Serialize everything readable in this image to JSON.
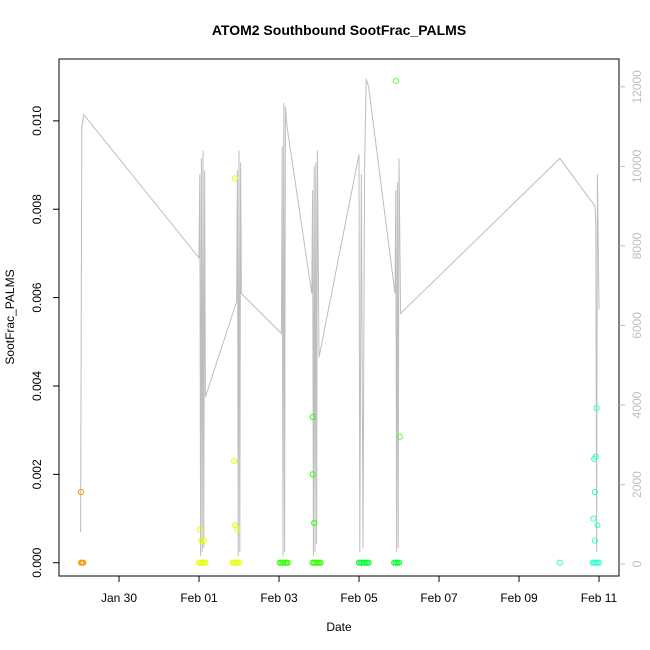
{
  "chart_data": {
    "type": "scatter",
    "title": "ATOM2 Southbound SootFrac_PALMS",
    "xlabel": "Date",
    "ylabel": "SootFrac_PALMS",
    "x_ticks": [
      "Jan 30",
      "Feb 01",
      "Feb 03",
      "Feb 05",
      "Feb 07",
      "Feb 09",
      "Feb 11"
    ],
    "x_tick_days": [
      0,
      2,
      4,
      6,
      8,
      10,
      12
    ],
    "xlim_days": [
      -1.5,
      12.5
    ],
    "x_reference": "Jan 30",
    "ylim": [
      -0.0003,
      0.0114
    ],
    "y_ticks": [
      0.0,
      0.002,
      0.004,
      0.006,
      0.008,
      0.01
    ],
    "y_tick_labels": [
      "0.000",
      "0.002",
      "0.004",
      "0.006",
      "0.008",
      "0.010"
    ],
    "y2lim": [
      -300,
      12700
    ],
    "y2_ticks": [
      0,
      2000,
      4000,
      6000,
      8000,
      10000,
      12000
    ],
    "y2_tick_labels": [
      "0",
      "2000",
      "4000",
      "6000",
      "8000",
      "10000",
      "12000"
    ],
    "points": [
      {
        "x": -0.95,
        "y": 0.0016,
        "color": "#ff9900"
      },
      {
        "x": -0.95,
        "y": 0.0,
        "color": "#ff9900"
      },
      {
        "x": -0.92,
        "y": 0.0,
        "color": "#ff9900"
      },
      {
        "x": -0.89,
        "y": 0.0,
        "color": "#ff9900"
      },
      {
        "x": 2.02,
        "y": 0.00075,
        "color": "#e6ff00"
      },
      {
        "x": 2.06,
        "y": 0.0005,
        "color": "#e6ff00"
      },
      {
        "x": 2.12,
        "y": 0.0005,
        "color": "#e6ff00"
      },
      {
        "x": 2.0,
        "y": 0.0,
        "color": "#e6ff00"
      },
      {
        "x": 2.04,
        "y": 0.0,
        "color": "#e6ff00"
      },
      {
        "x": 2.08,
        "y": 0.0,
        "color": "#e6ff00"
      },
      {
        "x": 2.12,
        "y": 0.0,
        "color": "#e6ff00"
      },
      {
        "x": 2.16,
        "y": 0.0,
        "color": "#e6ff00"
      },
      {
        "x": 2.9,
        "y": 0.0087,
        "color": "#e6ff00"
      },
      {
        "x": 2.88,
        "y": 0.0023,
        "color": "#e6ff00"
      },
      {
        "x": 2.9,
        "y": 0.00085,
        "color": "#e6ff00"
      },
      {
        "x": 2.96,
        "y": 0.00075,
        "color": "#e6ff00"
      },
      {
        "x": 2.84,
        "y": 0.0,
        "color": "#e6ff00"
      },
      {
        "x": 2.88,
        "y": 0.0,
        "color": "#e6ff00"
      },
      {
        "x": 2.92,
        "y": 0.0,
        "color": "#e6ff00"
      },
      {
        "x": 2.96,
        "y": 0.0,
        "color": "#e6ff00"
      },
      {
        "x": 3.0,
        "y": 0.0,
        "color": "#e6ff00"
      },
      {
        "x": 4.02,
        "y": 0.0,
        "color": "#33ff00"
      },
      {
        "x": 4.06,
        "y": 0.0,
        "color": "#33ff00"
      },
      {
        "x": 4.1,
        "y": 0.0,
        "color": "#33ff00"
      },
      {
        "x": 4.14,
        "y": 0.0,
        "color": "#33ff00"
      },
      {
        "x": 4.18,
        "y": 0.0,
        "color": "#33ff00"
      },
      {
        "x": 4.22,
        "y": 0.0,
        "color": "#33ff00"
      },
      {
        "x": 4.84,
        "y": 0.0033,
        "color": "#33ff00"
      },
      {
        "x": 4.84,
        "y": 0.002,
        "color": "#33ff00"
      },
      {
        "x": 4.88,
        "y": 0.0009,
        "color": "#33ff00"
      },
      {
        "x": 4.84,
        "y": 0.0,
        "color": "#33ff00"
      },
      {
        "x": 4.88,
        "y": 0.0,
        "color": "#33ff00"
      },
      {
        "x": 4.92,
        "y": 0.0,
        "color": "#33ff00"
      },
      {
        "x": 4.96,
        "y": 0.0,
        "color": "#33ff00"
      },
      {
        "x": 5.0,
        "y": 0.0,
        "color": "#33ff00"
      },
      {
        "x": 5.04,
        "y": 0.0,
        "color": "#33ff00"
      },
      {
        "x": 6.0,
        "y": 0.0,
        "color": "#00ff33"
      },
      {
        "x": 6.04,
        "y": 0.0,
        "color": "#00ff33"
      },
      {
        "x": 6.08,
        "y": 0.0,
        "color": "#00ff33"
      },
      {
        "x": 6.12,
        "y": 0.0,
        "color": "#00ff33"
      },
      {
        "x": 6.16,
        "y": 0.0,
        "color": "#00ff33"
      },
      {
        "x": 6.2,
        "y": 0.0,
        "color": "#00ff33"
      },
      {
        "x": 6.24,
        "y": 0.0,
        "color": "#00ff33"
      },
      {
        "x": 6.92,
        "y": 0.0109,
        "color": "#66ff33"
      },
      {
        "x": 7.02,
        "y": 0.00285,
        "color": "#66ff33"
      },
      {
        "x": 6.88,
        "y": 0.0,
        "color": "#00ff33"
      },
      {
        "x": 6.92,
        "y": 0.0,
        "color": "#00ff33"
      },
      {
        "x": 6.96,
        "y": 0.0,
        "color": "#00ff33"
      },
      {
        "x": 7.0,
        "y": 0.0,
        "color": "#00ff33"
      },
      {
        "x": 11.02,
        "y": 0.0,
        "color": "#33ffaa"
      },
      {
        "x": 11.94,
        "y": 0.0035,
        "color": "#33ffcc"
      },
      {
        "x": 11.92,
        "y": 0.0024,
        "color": "#33ffcc"
      },
      {
        "x": 11.88,
        "y": 0.00235,
        "color": "#33ffcc"
      },
      {
        "x": 11.9,
        "y": 0.0016,
        "color": "#33ffcc"
      },
      {
        "x": 11.86,
        "y": 0.001,
        "color": "#33ffcc"
      },
      {
        "x": 11.96,
        "y": 0.00085,
        "color": "#33ffcc"
      },
      {
        "x": 11.9,
        "y": 0.0005,
        "color": "#33ffcc"
      },
      {
        "x": 11.84,
        "y": 0.0,
        "color": "#33ffcc"
      },
      {
        "x": 11.88,
        "y": 0.0,
        "color": "#33ffcc"
      },
      {
        "x": 11.92,
        "y": 0.0,
        "color": "#33ffcc"
      },
      {
        "x": 11.96,
        "y": 0.0,
        "color": "#33ffcc"
      },
      {
        "x": 12.0,
        "y": 0.0,
        "color": "#33ffcc"
      }
    ],
    "altitude_line": {
      "color": "#bebebe",
      "points": [
        [
          -0.96,
          800
        ],
        [
          -0.93,
          11000
        ],
        [
          -0.88,
          11300
        ],
        [
          2.0,
          7700
        ],
        [
          2.02,
          9800
        ],
        [
          2.04,
          200
        ],
        [
          2.06,
          10200
        ],
        [
          2.08,
          300
        ],
        [
          2.1,
          10400
        ],
        [
          2.12,
          400
        ],
        [
          2.14,
          9900
        ],
        [
          2.16,
          4200
        ],
        [
          2.94,
          6600
        ],
        [
          2.96,
          9900
        ],
        [
          2.98,
          200
        ],
        [
          3.0,
          10400
        ],
        [
          3.02,
          300
        ],
        [
          3.04,
          10100
        ],
        [
          3.06,
          6800
        ],
        [
          4.06,
          5800
        ],
        [
          4.08,
          10500
        ],
        [
          4.1,
          200
        ],
        [
          4.12,
          11600
        ],
        [
          4.14,
          300
        ],
        [
          4.16,
          11500
        ],
        [
          4.2,
          11000
        ],
        [
          4.82,
          6800
        ],
        [
          4.84,
          9400
        ],
        [
          4.86,
          200
        ],
        [
          4.88,
          10000
        ],
        [
          4.9,
          300
        ],
        [
          4.92,
          10100
        ],
        [
          4.94,
          500
        ],
        [
          4.96,
          10400
        ],
        [
          5.0,
          5200
        ],
        [
          6.0,
          10300
        ],
        [
          6.02,
          300
        ],
        [
          6.06,
          9800
        ],
        [
          6.1,
          400
        ],
        [
          6.14,
          10000
        ],
        [
          6.18,
          12200
        ],
        [
          6.24,
          12000
        ],
        [
          6.9,
          6800
        ],
        [
          6.92,
          9400
        ],
        [
          6.94,
          300
        ],
        [
          6.96,
          9600
        ],
        [
          6.98,
          400
        ],
        [
          7.0,
          10200
        ],
        [
          7.04,
          6300
        ],
        [
          11.02,
          10200
        ],
        [
          11.9,
          9000
        ],
        [
          11.92,
          8600
        ],
        [
          11.94,
          300
        ],
        [
          11.96,
          9800
        ],
        [
          12.0,
          6400
        ]
      ]
    }
  }
}
